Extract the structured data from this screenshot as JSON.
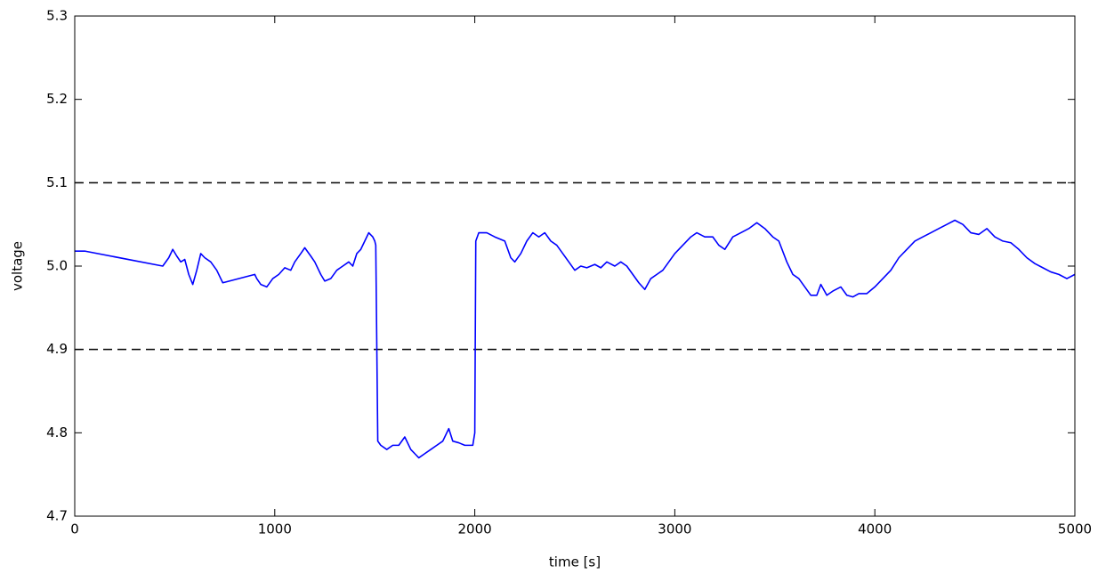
{
  "chart_data": {
    "type": "line",
    "xlabel": "time [s]",
    "ylabel": "voltage",
    "xlim": [
      0,
      5000
    ],
    "ylim": [
      4.7,
      5.3
    ],
    "xticks": [
      0,
      1000,
      2000,
      3000,
      4000,
      5000
    ],
    "yticks": [
      4.7,
      4.8,
      4.9,
      {
        "value": 5,
        "label": "5.0"
      },
      5.1,
      5.2,
      5.3
    ],
    "color": "#0000ff",
    "hlines": {
      "values": [
        5.1,
        4.9
      ],
      "color": "#000000",
      "style": "dashed"
    },
    "x": [
      0,
      50,
      440,
      470,
      490,
      510,
      530,
      550,
      570,
      590,
      610,
      630,
      650,
      680,
      710,
      730,
      740,
      900,
      910,
      930,
      960,
      990,
      1020,
      1050,
      1080,
      1100,
      1130,
      1150,
      1180,
      1200,
      1230,
      1250,
      1280,
      1310,
      1340,
      1370,
      1390,
      1410,
      1430,
      1450,
      1470,
      1490,
      1500,
      1505,
      1515,
      1530,
      1560,
      1590,
      1620,
      1650,
      1680,
      1700,
      1720,
      1750,
      1780,
      1810,
      1840,
      1870,
      1890,
      1920,
      1950,
      1990,
      2000,
      2005,
      2020,
      2060,
      2100,
      2150,
      2180,
      2200,
      2230,
      2260,
      2290,
      2320,
      2350,
      2380,
      2410,
      2440,
      2470,
      2500,
      2530,
      2560,
      2600,
      2630,
      2660,
      2700,
      2730,
      2760,
      2790,
      2820,
      2850,
      2880,
      2910,
      2940,
      2970,
      3000,
      3040,
      3080,
      3110,
      3150,
      3190,
      3220,
      3250,
      3290,
      3330,
      3370,
      3410,
      3450,
      3490,
      3520,
      3560,
      3590,
      3620,
      3650,
      3680,
      3710,
      3730,
      3760,
      3790,
      3830,
      3860,
      3890,
      3920,
      3960,
      4000,
      4040,
      4080,
      4120,
      4160,
      4200,
      4240,
      4280,
      4320,
      4360,
      4400,
      4440,
      4480,
      4520,
      4560,
      4600,
      4640,
      4680,
      4720,
      4760,
      4800,
      4840,
      4880,
      4920,
      4960,
      5000
    ],
    "values": [
      5.018,
      5.018,
      5.0,
      5.01,
      5.02,
      5.012,
      5.005,
      5.008,
      4.99,
      4.978,
      4.995,
      5.015,
      5.01,
      5.005,
      4.995,
      4.985,
      4.98,
      4.99,
      4.985,
      4.978,
      4.975,
      4.985,
      4.99,
      4.998,
      4.995,
      5.005,
      5.015,
      5.022,
      5.012,
      5.005,
      4.99,
      4.982,
      4.985,
      4.995,
      5.0,
      5.005,
      5.0,
      5.015,
      5.02,
      5.03,
      5.04,
      5.035,
      5.03,
      5.025,
      4.79,
      4.785,
      4.78,
      4.785,
      4.785,
      4.795,
      4.78,
      4.775,
      4.77,
      4.775,
      4.78,
      4.785,
      4.79,
      4.805,
      4.79,
      4.788,
      4.785,
      4.785,
      4.8,
      5.03,
      5.04,
      5.04,
      5.035,
      5.03,
      5.01,
      5.005,
      5.015,
      5.03,
      5.04,
      5.035,
      5.04,
      5.03,
      5.025,
      5.015,
      5.005,
      4.995,
      5.0,
      4.998,
      5.002,
      4.998,
      5.005,
      5.0,
      5.005,
      5.0,
      4.99,
      4.98,
      4.972,
      4.985,
      4.99,
      4.995,
      5.005,
      5.015,
      5.025,
      5.035,
      5.04,
      5.035,
      5.035,
      5.025,
      5.02,
      5.035,
      5.04,
      5.045,
      5.052,
      5.045,
      5.035,
      5.03,
      5.005,
      4.99,
      4.985,
      4.975,
      4.965,
      4.965,
      4.978,
      4.965,
      4.97,
      4.975,
      4.965,
      4.963,
      4.967,
      4.967,
      4.975,
      4.985,
      4.995,
      5.01,
      5.02,
      5.03,
      5.035,
      5.04,
      5.045,
      5.05,
      5.055,
      5.05,
      5.04,
      5.038,
      5.045,
      5.035,
      5.03,
      5.028,
      5.02,
      5.01,
      5.003,
      4.998,
      4.993,
      4.99,
      4.985,
      4.99
    ]
  }
}
